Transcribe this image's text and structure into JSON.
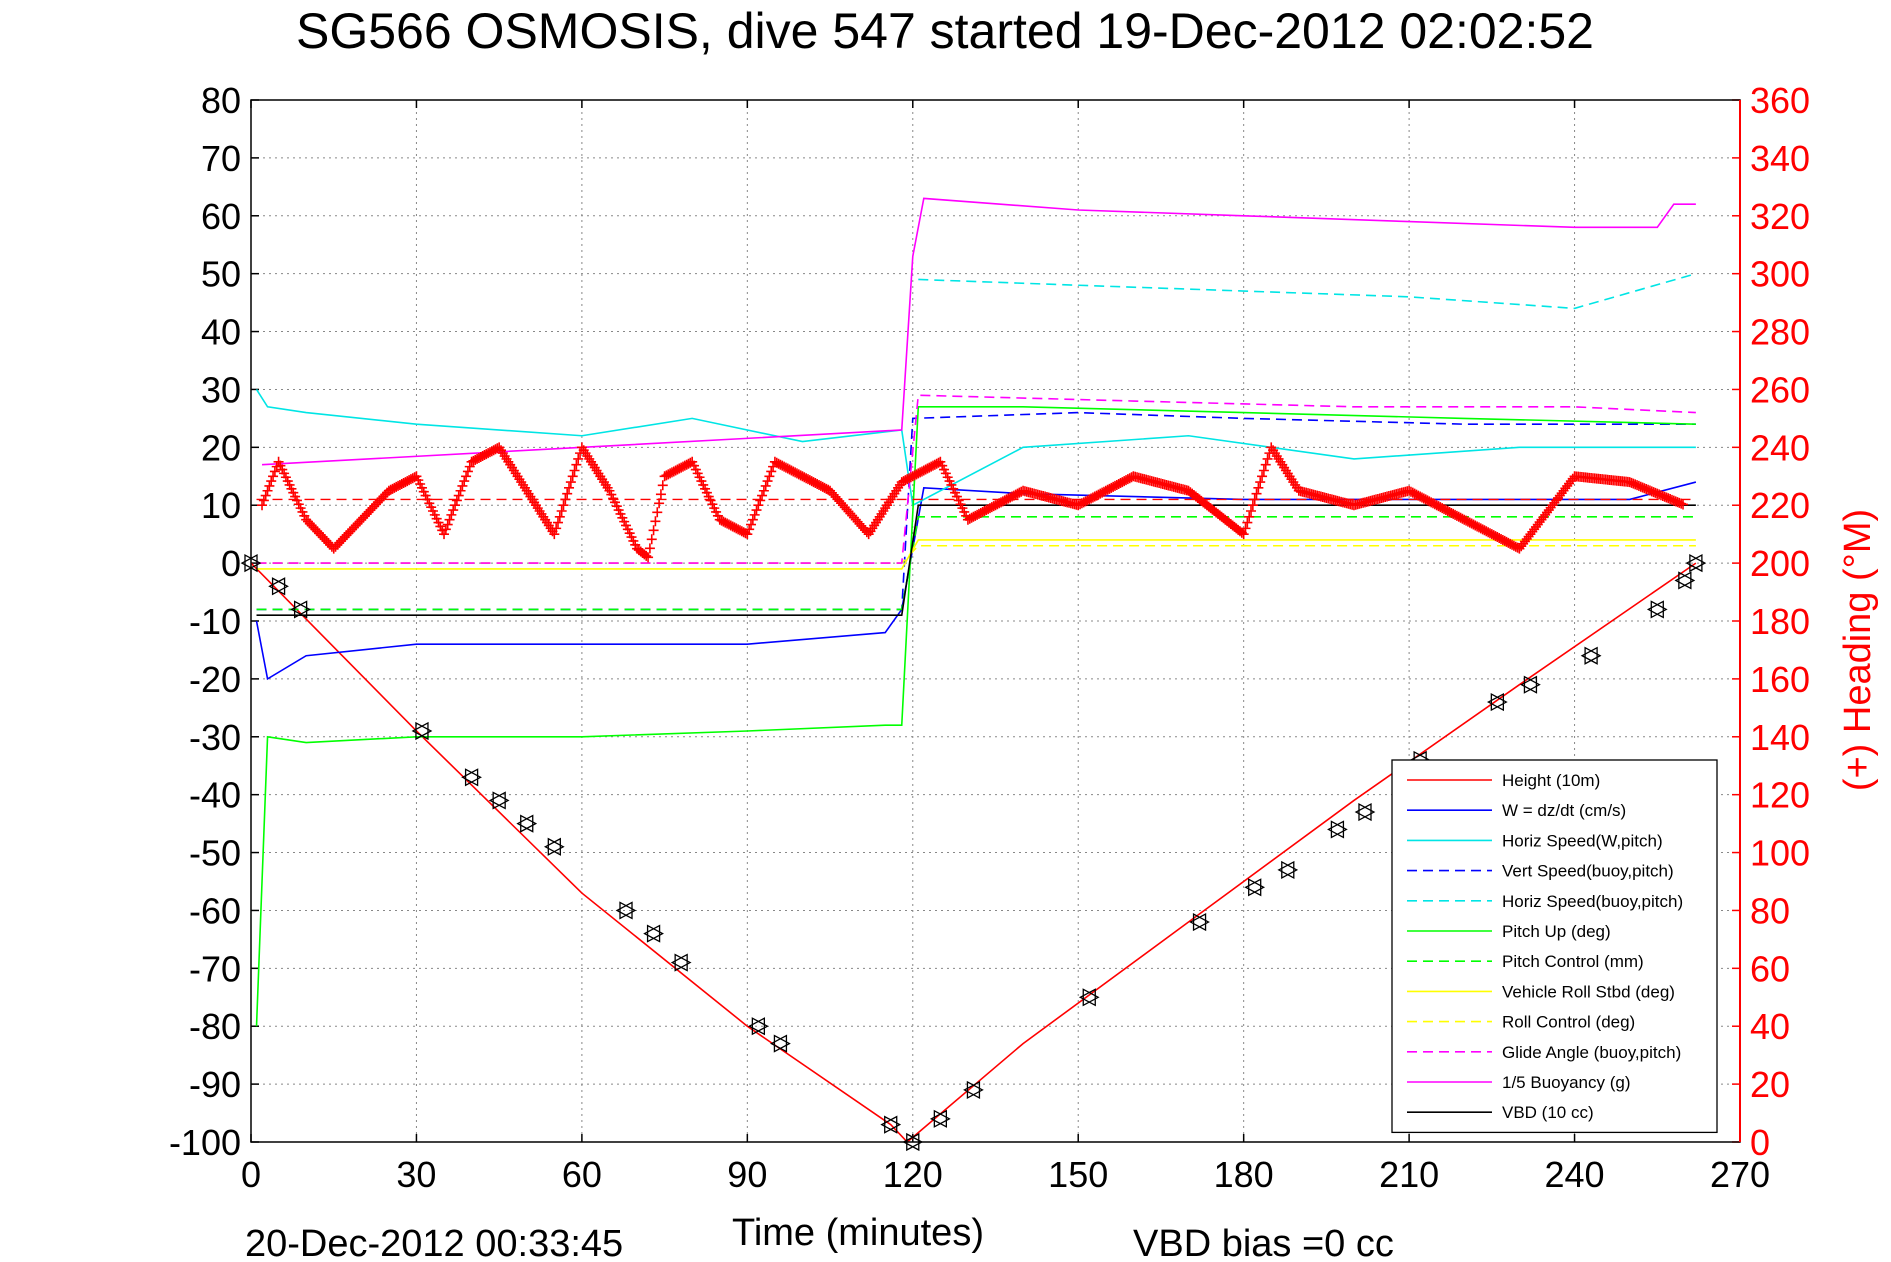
{
  "chart_data": {
    "type": "line",
    "title": "SG566 OSMOSIS, dive 547 started 19-Dec-2012 02:02:52",
    "xlabel": "Time (minutes)",
    "ylabel_right": "(+) Heading (°M)",
    "footer_left": "20-Dec-2012 00:33:45",
    "footer_right": "VBD bias =0 cc",
    "xlim": [
      0,
      270
    ],
    "ylim": [
      -100,
      80
    ],
    "ylim_right": [
      0,
      360
    ],
    "x_ticks": [
      0,
      30,
      60,
      90,
      120,
      150,
      180,
      210,
      240,
      270
    ],
    "y_ticks": [
      80,
      70,
      60,
      50,
      40,
      30,
      20,
      10,
      0,
      -10,
      -20,
      -30,
      -40,
      -50,
      -60,
      -70,
      -80,
      -90,
      -100
    ],
    "y_right_ticks": [
      360,
      340,
      320,
      300,
      280,
      260,
      240,
      220,
      200,
      180,
      160,
      140,
      120,
      100,
      80,
      60,
      40,
      20,
      0
    ],
    "grid": true,
    "legend_position": "bottom-right",
    "series": [
      {
        "name": "Height (10m)",
        "color": "#ff0000",
        "style": "solid",
        "x": [
          0,
          30,
          60,
          90,
          116,
          119,
          140,
          170,
          200,
          230,
          262
        ],
        "y": [
          0,
          -29,
          -57,
          -80,
          -97,
          -100,
          -83,
          -62,
          -41,
          -21,
          0
        ]
      },
      {
        "name": "W = dz/dt (cm/s)",
        "color": "#0000ff",
        "style": "solid",
        "x": [
          1,
          3,
          10,
          30,
          60,
          90,
          115,
          118,
          122,
          140,
          180,
          220,
          250,
          262
        ],
        "y": [
          -10,
          -20,
          -16,
          -14,
          -14,
          -14,
          -12,
          -8,
          13,
          12,
          11,
          11,
          11,
          14
        ]
      },
      {
        "name": "Horiz Speed(W,pitch)",
        "color": "#00e5e5",
        "style": "solid",
        "x": [
          1,
          3,
          10,
          30,
          60,
          80,
          100,
          118,
          120,
          140,
          170,
          200,
          230,
          262
        ],
        "y": [
          30,
          27,
          26,
          24,
          22,
          25,
          21,
          23,
          10,
          20,
          22,
          18,
          20,
          20
        ]
      },
      {
        "name": "Vert Speed(buoy,pitch)",
        "color": "#0000ff",
        "style": "dashed",
        "x": [
          1,
          118,
          120,
          150,
          180,
          220,
          262
        ],
        "y": [
          -8,
          -8,
          25,
          26,
          25,
          24,
          24
        ]
      },
      {
        "name": "Horiz Speed(buoy,pitch)",
        "color": "#00e5e5",
        "style": "dashed",
        "x": [
          121,
          150,
          180,
          210,
          240,
          262
        ],
        "y": [
          49,
          48,
          47,
          46,
          44,
          50
        ]
      },
      {
        "name": "Pitch Up (deg)",
        "color": "#00ff00",
        "style": "solid",
        "x": [
          1,
          3,
          10,
          30,
          60,
          90,
          115,
          118,
          121,
          140,
          180,
          220,
          262
        ],
        "y": [
          -80,
          -30,
          -31,
          -30,
          -30,
          -29,
          -28,
          -28,
          27,
          27,
          26,
          25,
          24
        ]
      },
      {
        "name": "Pitch Control (mm)",
        "color": "#00ff00",
        "style": "dashed",
        "x": [
          1,
          118,
          121,
          262
        ],
        "y": [
          -8,
          -8,
          8,
          8
        ]
      },
      {
        "name": "Vehicle Roll Stbd (deg)",
        "color": "#ffff00",
        "style": "solid",
        "x": [
          1,
          118,
          121,
          262
        ],
        "y": [
          -1,
          -1,
          4,
          4
        ]
      },
      {
        "name": "Roll Control (deg)",
        "color": "#ffff00",
        "style": "dashed",
        "x": [
          1,
          118,
          121,
          262
        ],
        "y": [
          0,
          0,
          3,
          3
        ]
      },
      {
        "name": "Glide Angle (buoy,pitch)",
        "color": "#ff00ff",
        "style": "dashed",
        "x": [
          1,
          118,
          121,
          160,
          200,
          240,
          262
        ],
        "y": [
          0,
          0,
          29,
          28,
          27,
          27,
          26
        ]
      },
      {
        "name": "1/5 Buoyancy (g)",
        "color": "#ff00ff",
        "style": "solid",
        "x": [
          2,
          118,
          120,
          122,
          150,
          180,
          210,
          240,
          255,
          258,
          262
        ],
        "y": [
          17,
          23,
          53,
          63,
          61,
          60,
          59,
          58,
          58,
          62,
          62
        ]
      },
      {
        "name": "VBD (10 cc)",
        "color": "#000000",
        "style": "solid",
        "x": [
          1,
          118,
          121,
          262
        ],
        "y": [
          -9,
          -9,
          10,
          10
        ]
      }
    ],
    "heading_series": {
      "name": "(+) Heading (°M)",
      "color": "#ff0000",
      "marker": "+",
      "x": [
        2,
        5,
        10,
        15,
        20,
        25,
        30,
        35,
        40,
        45,
        50,
        55,
        60,
        65,
        70,
        72,
        75,
        80,
        85,
        90,
        95,
        100,
        105,
        112,
        118,
        125,
        130,
        140,
        150,
        160,
        170,
        180,
        185,
        190,
        200,
        210,
        220,
        230,
        240,
        250,
        260
      ],
      "y": [
        220,
        235,
        215,
        205,
        215,
        225,
        230,
        210,
        235,
        240,
        225,
        210,
        240,
        225,
        205,
        202,
        230,
        235,
        215,
        210,
        235,
        230,
        225,
        210,
        228,
        235,
        215,
        225,
        220,
        230,
        225,
        210,
        240,
        225,
        220,
        225,
        215,
        205,
        230,
        228,
        220
      ]
    },
    "reference_lines": {
      "heading_target": 222,
      "x_end": 262
    },
    "markers_on_height": {
      "x": [
        0,
        5,
        9,
        31,
        40,
        45,
        50,
        55,
        68,
        73,
        78,
        92,
        96,
        116,
        120,
        125,
        131,
        152,
        172,
        182,
        188,
        197,
        202,
        212,
        226,
        232,
        243,
        255,
        260,
        262
      ],
      "y": [
        0,
        -4,
        -8,
        -29,
        -37,
        -41,
        -45,
        -49,
        -60,
        -64,
        -69,
        -80,
        -83,
        -97,
        -100,
        -96,
        -91,
        -75,
        -62,
        -56,
        -53,
        -46,
        -43,
        -34,
        -24,
        -21,
        -16,
        -8,
        -3,
        0
      ]
    }
  }
}
